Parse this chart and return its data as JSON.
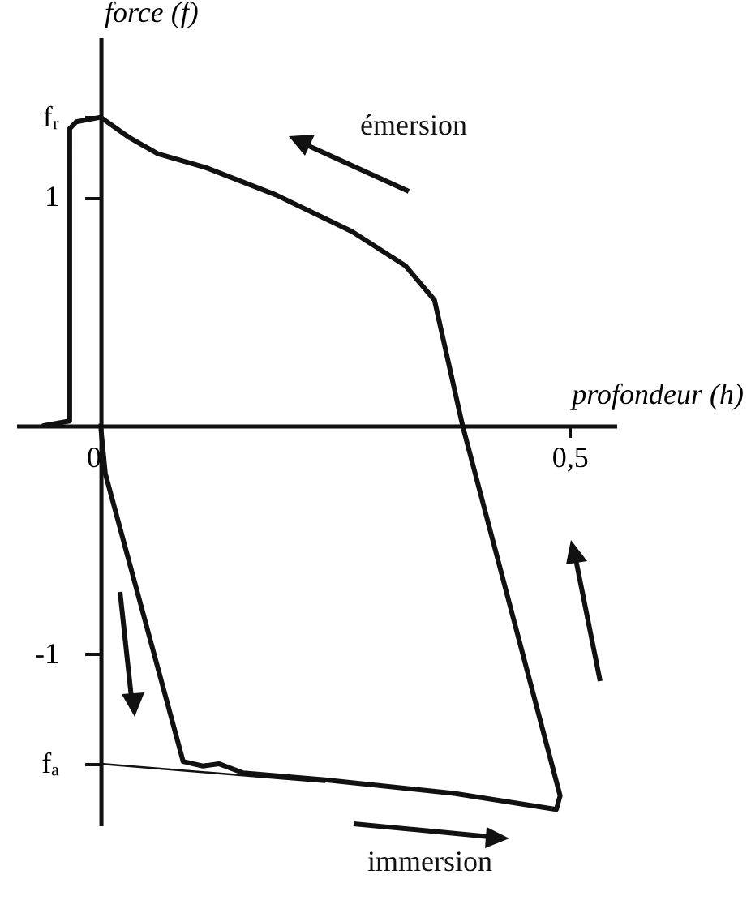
{
  "chart_data": {
    "type": "line",
    "xlabel": "profondeur (h)",
    "ylabel": "force (f)",
    "annotations": [
      "émersion",
      "immersion"
    ],
    "xlim": [
      -0.09,
      0.55
    ],
    "ylim": [
      -1.75,
      1.7
    ],
    "xticks": [
      0,
      {
        "value": 0.5,
        "label": "0,5"
      }
    ],
    "yticks": [
      {
        "value": 1.35,
        "label": "fᵣ"
      },
      1,
      -1,
      {
        "value": -1.48,
        "label": "fₐ"
      }
    ],
    "series": [
      {
        "color": "#111111",
        "x": [
          0,
          0.005,
          0.088,
          0.109,
          0.126,
          0.152,
          0.239,
          0.377,
          0.486,
          0.49,
          0.386,
          0.356,
          0.325,
          0.268,
          0.187,
          0.112,
          0.061,
          0.031,
          0,
          -0.026,
          -0.033,
          -0.033,
          -0.061
        ],
        "values": [
          0,
          -0.21,
          -1.47,
          -1.49,
          -1.48,
          -1.52,
          -1.55,
          -1.61,
          -1.68,
          -1.62,
          0,
          0.55,
          0.7,
          0.85,
          1.01,
          1.13,
          1.19,
          1.26,
          1.35,
          1.33,
          1.3,
          0.02,
          0
        ]
      },
      {
        "color": "#111111",
        "x": [
          0,
          0.239
        ],
        "values": [
          -1.48,
          -1.56
        ]
      }
    ]
  }
}
